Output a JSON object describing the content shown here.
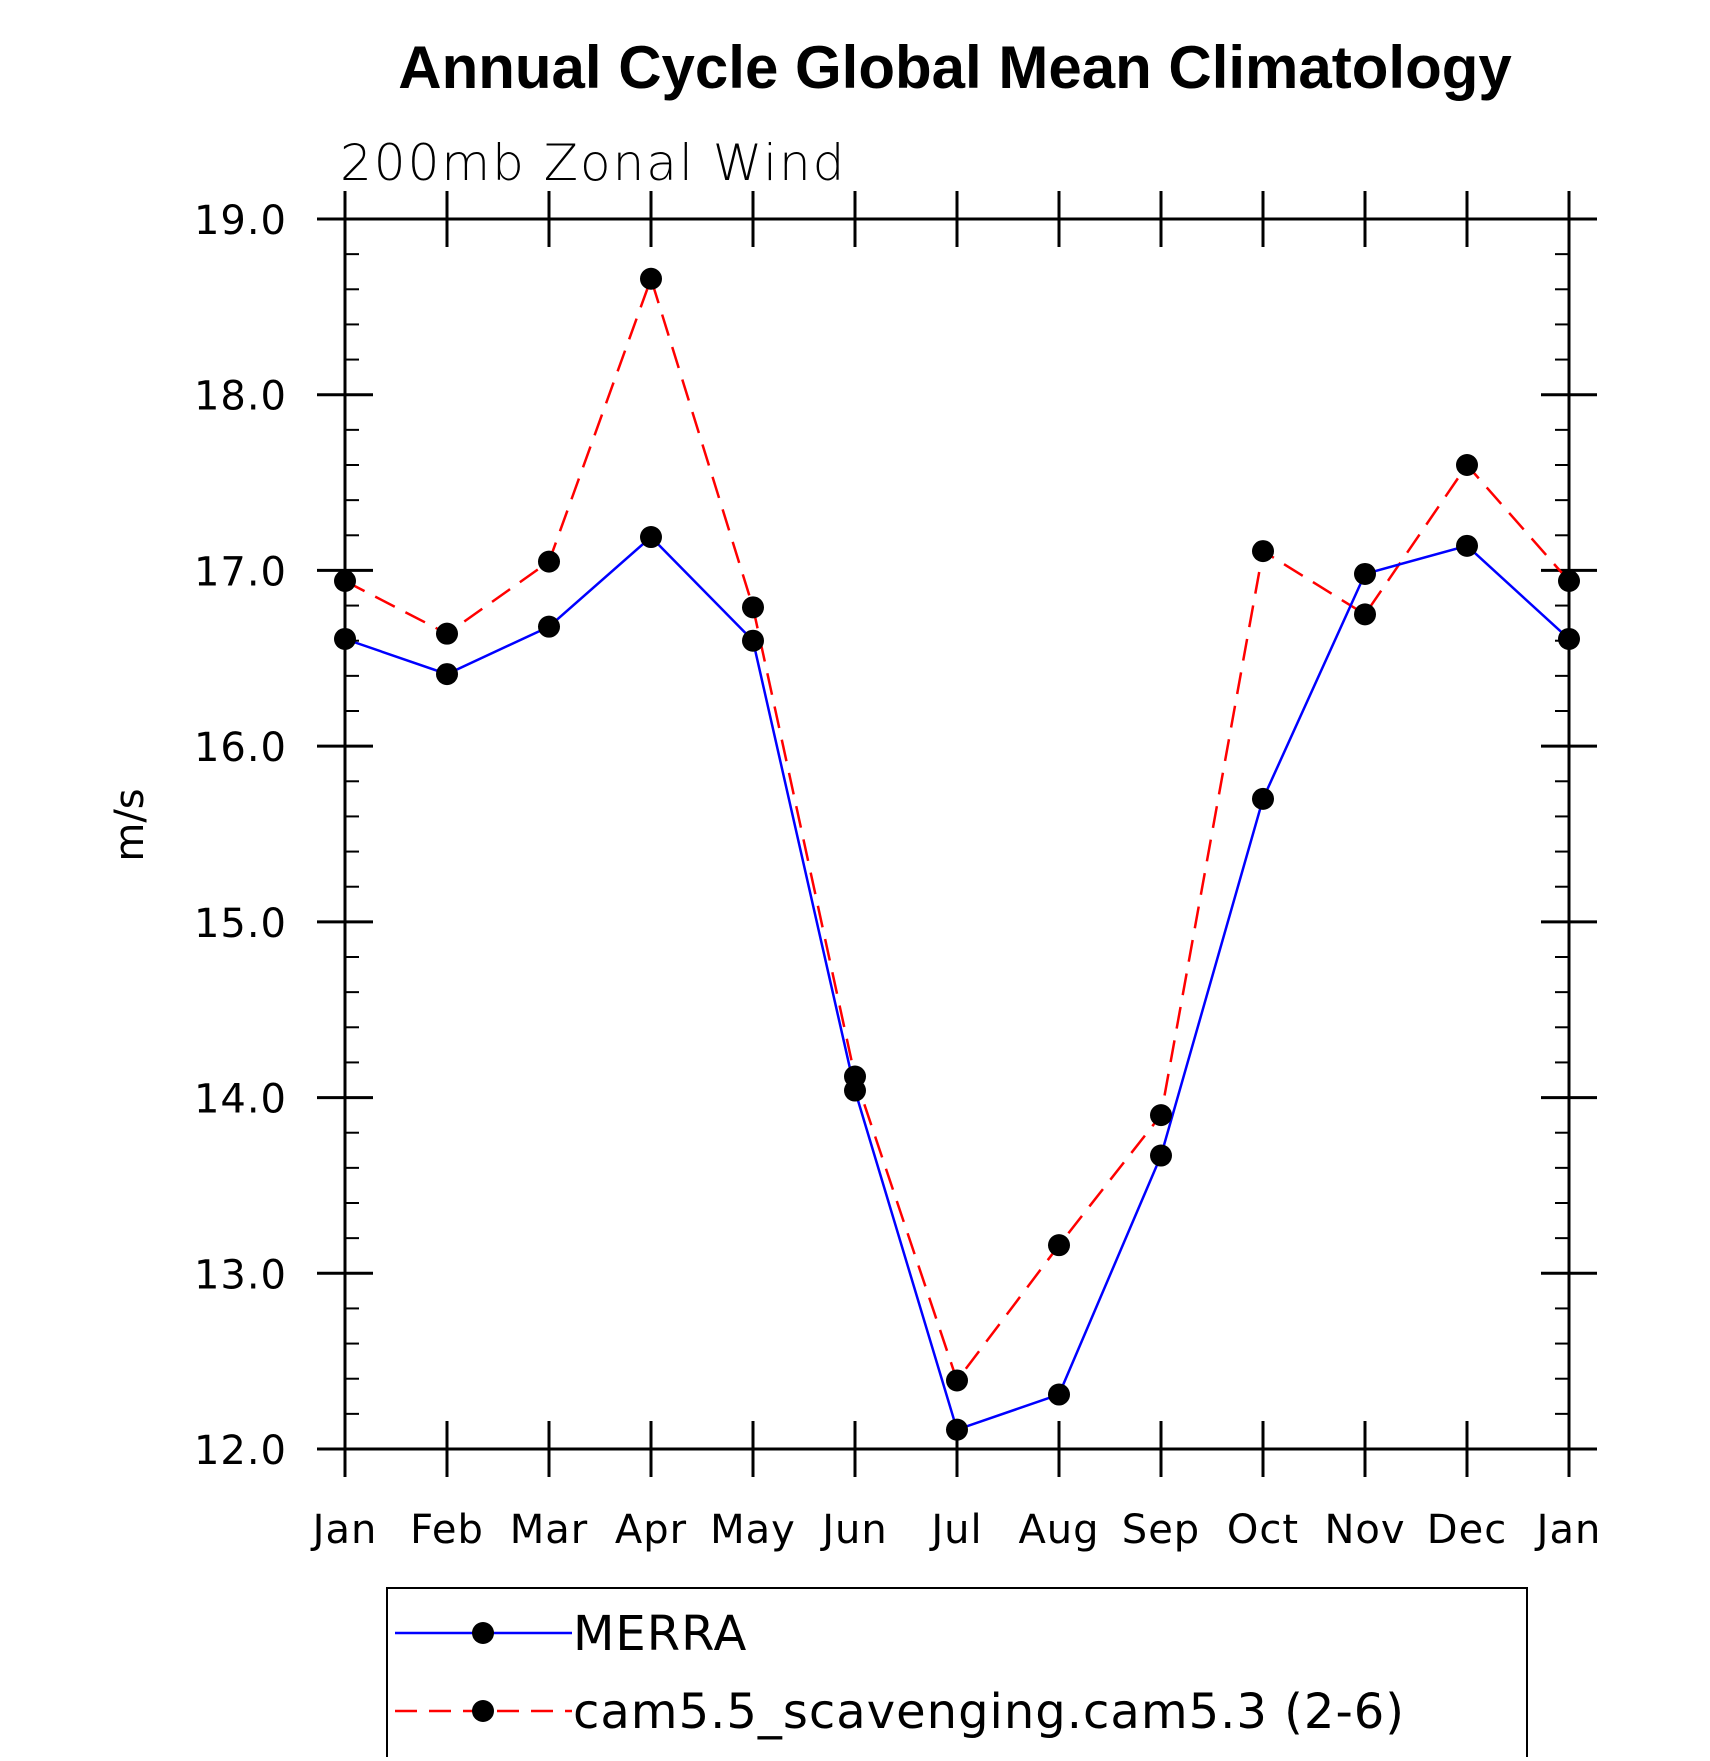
{
  "chart_data": {
    "type": "line",
    "title": "Annual Cycle Global Mean Climatology",
    "subtitle": "200mb Zonal Wind",
    "ylabel": "m/s",
    "xlabel": "",
    "ylim": [
      12.0,
      19.0
    ],
    "y_major_ticks": [
      12.0,
      13.0,
      14.0,
      15.0,
      16.0,
      17.0,
      18.0,
      19.0
    ],
    "y_tick_labels": [
      "12.0",
      "13.0",
      "14.0",
      "15.0",
      "16.0",
      "17.0",
      "18.0",
      "19.0"
    ],
    "y_minor_step": 0.2,
    "categories": [
      "Jan",
      "Feb",
      "Mar",
      "Apr",
      "May",
      "Jun",
      "Jul",
      "Aug",
      "Sep",
      "Oct",
      "Nov",
      "Dec",
      "Jan"
    ],
    "grid": false,
    "legend_position": "bottom",
    "series": [
      {
        "name": "MERRA",
        "color": "#0000ff",
        "line_style": "solid",
        "marker": "filled-circle",
        "marker_color": "#000000",
        "values": [
          16.61,
          16.41,
          16.68,
          17.19,
          16.6,
          14.04,
          12.11,
          12.31,
          13.67,
          15.7,
          16.98,
          17.14,
          16.61
        ]
      },
      {
        "name": "cam5.5_scavenging.cam5.3 (2-6)",
        "color": "#ff0000",
        "line_style": "dashed",
        "marker": "filled-circle",
        "marker_color": "#000000",
        "values": [
          16.94,
          16.64,
          17.05,
          18.66,
          16.79,
          14.12,
          12.39,
          13.16,
          13.9,
          17.11,
          16.75,
          17.6,
          16.94
        ]
      }
    ]
  }
}
